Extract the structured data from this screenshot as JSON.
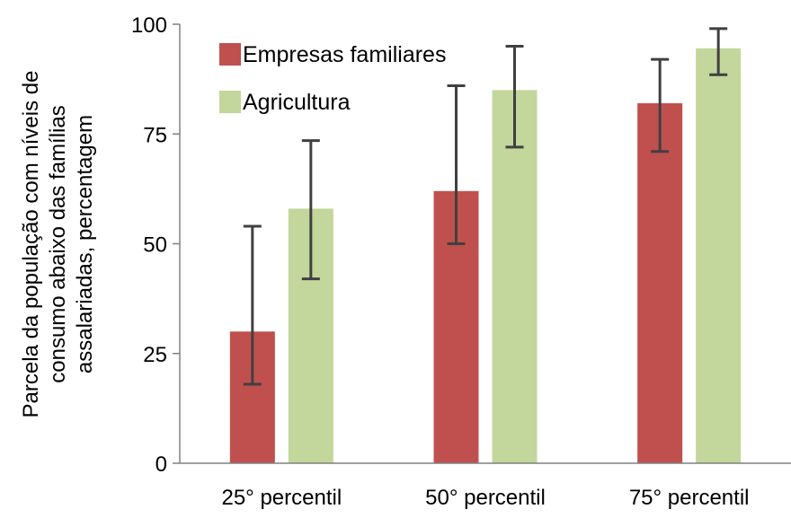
{
  "chart_data": {
    "type": "bar",
    "categories": [
      "25° percentil",
      "50° percentil",
      "75° percentil"
    ],
    "series": [
      {
        "name": "Empresas familiares",
        "color": "#c0504d",
        "values": [
          30,
          62,
          82
        ],
        "error_low": [
          18,
          50,
          71
        ],
        "error_high": [
          54,
          86,
          92
        ]
      },
      {
        "name": "Agricultura",
        "color": "#c3d69b",
        "values": [
          58,
          85,
          94.5
        ],
        "error_low": [
          42,
          72,
          88.5
        ],
        "error_high": [
          73.5,
          95,
          99
        ]
      }
    ],
    "ylabel_lines": [
      "Parcela da população com níveis de",
      "consumo abaixo das famílias",
      "assalariadas, percentagem"
    ],
    "yticks": [
      0,
      25,
      50,
      75,
      100
    ],
    "ylim": [
      0,
      100
    ],
    "grid": false,
    "legend_position": "top-left",
    "error_bar_color": "#404040"
  }
}
